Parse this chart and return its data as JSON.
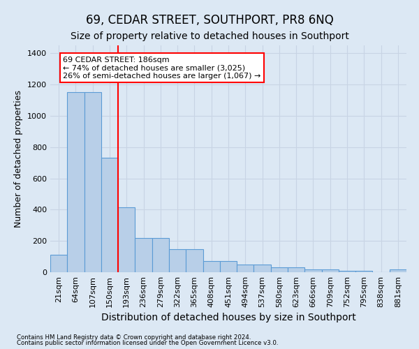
{
  "title": "69, CEDAR STREET, SOUTHPORT, PR8 6NQ",
  "subtitle": "Size of property relative to detached houses in Southport",
  "xlabel": "Distribution of detached houses by size in Southport",
  "ylabel": "Number of detached properties",
  "footer_line1": "Contains HM Land Registry data © Crown copyright and database right 2024.",
  "footer_line2": "Contains public sector information licensed under the Open Government Licence v3.0.",
  "bar_labels": [
    "21sqm",
    "64sqm",
    "107sqm",
    "150sqm",
    "193sqm",
    "236sqm",
    "279sqm",
    "322sqm",
    "365sqm",
    "408sqm",
    "451sqm",
    "494sqm",
    "537sqm",
    "580sqm",
    "623sqm",
    "666sqm",
    "709sqm",
    "752sqm",
    "795sqm",
    "838sqm",
    "881sqm"
  ],
  "bar_values": [
    110,
    1150,
    1150,
    730,
    415,
    220,
    220,
    148,
    148,
    72,
    72,
    50,
    50,
    32,
    32,
    18,
    18,
    10,
    10,
    0,
    18
  ],
  "bar_color": "#b8cfe8",
  "bar_edge_color": "#5b9bd5",
  "vline_index": 3.5,
  "vline_color": "red",
  "annotation_text": "69 CEDAR STREET: 186sqm\n← 74% of detached houses are smaller (3,025)\n26% of semi-detached houses are larger (1,067) →",
  "annotation_box_color": "red",
  "annotation_text_color": "black",
  "annotation_bg_color": "white",
  "ylim": [
    0,
    1450
  ],
  "yticks": [
    0,
    200,
    400,
    600,
    800,
    1000,
    1200,
    1400
  ],
  "grid_color": "#c8d4e4",
  "bg_color": "#dce8f4",
  "title_fontsize": 12,
  "subtitle_fontsize": 10,
  "ylabel_fontsize": 9,
  "xlabel_fontsize": 10,
  "tick_fontsize": 8
}
